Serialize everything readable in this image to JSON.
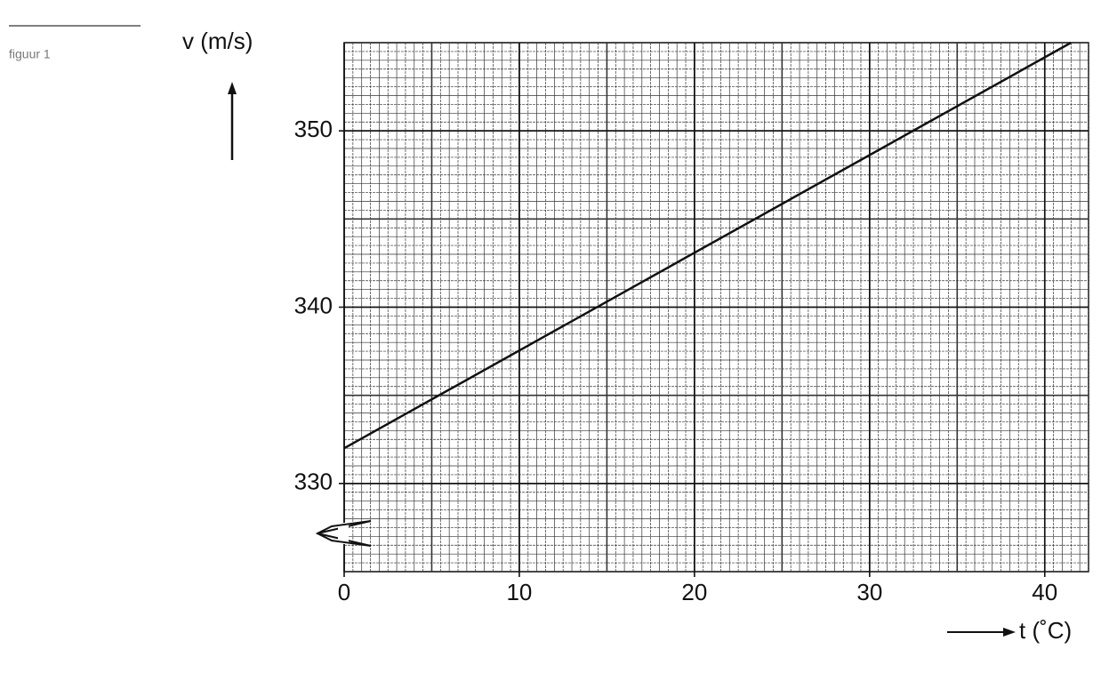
{
  "figure_label": "figuur 1",
  "chart_data": {
    "type": "line",
    "ylabel": "v (m/s)",
    "xlabel": "t (˚C)",
    "x": [
      0,
      41.5
    ],
    "values": [
      332,
      355
    ],
    "color": "#111111",
    "xlim": [
      0,
      42.5
    ],
    "ylim": [
      325,
      355
    ],
    "xticks": [
      0,
      10,
      20,
      30,
      40
    ],
    "yticks": [
      330,
      340,
      350
    ],
    "grid": true,
    "xminor": 0.5,
    "yminor": 0.5
  }
}
